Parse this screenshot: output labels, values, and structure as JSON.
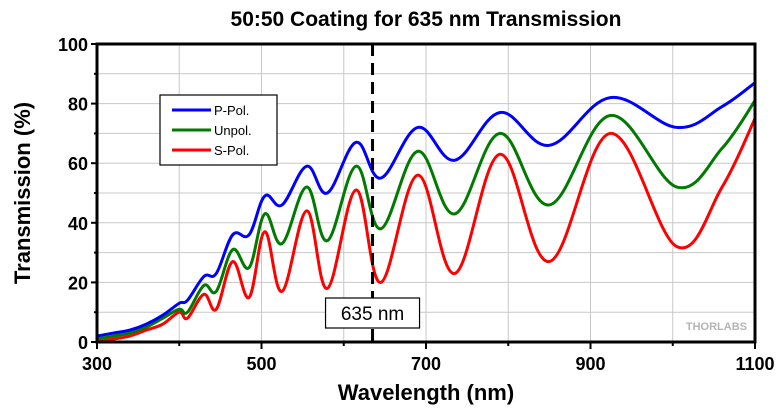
{
  "chart_data": {
    "type": "line",
    "title": "50:50 Coating for 635 nm Transmission",
    "xlabel": "Wavelength (nm)",
    "ylabel": "Transmission (%)",
    "xlim": [
      300,
      1100
    ],
    "ylim": [
      0,
      100
    ],
    "xticks": [
      300,
      500,
      700,
      900,
      1100
    ],
    "yticks": [
      0,
      20,
      40,
      60,
      80,
      100
    ],
    "grid": true,
    "legend_position": "upper-left",
    "annotation": {
      "x": 635,
      "label": "635 nm",
      "style": "dashed vertical line"
    },
    "watermark": "THORLABS",
    "x": [
      300,
      320,
      340,
      360,
      380,
      400,
      410,
      430,
      445,
      465,
      485,
      504,
      525,
      555,
      580,
      615,
      645,
      690,
      735,
      790,
      850,
      924,
      1005,
      1060,
      1100
    ],
    "series": [
      {
        "name": "P-Pol.",
        "color": "#0000ff",
        "values": [
          2,
          3,
          4,
          6,
          9,
          13,
          14,
          22,
          23,
          36,
          36,
          49,
          46,
          59,
          50,
          67,
          55,
          72,
          61,
          77,
          66,
          82,
          72,
          79,
          87
        ]
      },
      {
        "name": "Unpol.",
        "color": "#007a00",
        "values": [
          1,
          2,
          3,
          5,
          8,
          11,
          10,
          19,
          17,
          31,
          25,
          43,
          33,
          52,
          34,
          59,
          38,
          64,
          43,
          70,
          46,
          76,
          52,
          65,
          81
        ]
      },
      {
        "name": "S-Pol.",
        "color": "#ff0000",
        "values": [
          0,
          1,
          2,
          4,
          6,
          10,
          8,
          16,
          11,
          27,
          15,
          37,
          17,
          44,
          18,
          51,
          20,
          56,
          23,
          63,
          27,
          70,
          32,
          52,
          75
        ]
      }
    ]
  }
}
